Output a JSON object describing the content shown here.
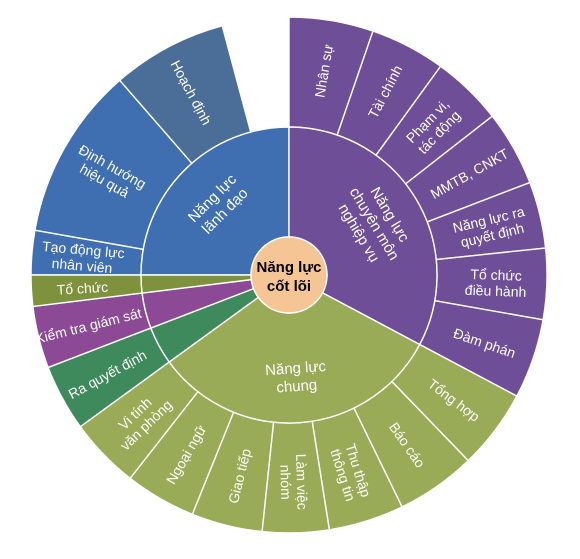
{
  "diagram": {
    "center": {
      "lines": [
        "Năng lực",
        "cốt lõi"
      ],
      "color": "#f6c596"
    },
    "groups": [
      {
        "id": "lanh-dao",
        "lines": [
          "Năng lực",
          "lãnh đạo"
        ],
        "inner_color": "#3f6fb0",
        "outer_color": "#3f6fb0",
        "items": [
          {
            "lines": [
              "Tạo động lực",
              "nhân viên"
            ],
            "color": "#3f6fb0"
          },
          {
            "lines": [
              "Định hướng",
              "hiệu quả"
            ],
            "color": "#3f6fb0"
          },
          {
            "lines": [
              "Hoạch định"
            ],
            "color": "#4a6e97"
          }
        ]
      },
      {
        "id": "chuyen-mon",
        "lines": [
          "Năng lực",
          "chuyên môn",
          "nghiệp vụ"
        ],
        "inner_color": "#6f4e98",
        "outer_color": "#6f4e98",
        "items": [
          {
            "lines": [
              "Nhân sự"
            ],
            "color": "#6f4e98"
          },
          {
            "lines": [
              "Tài chính"
            ],
            "color": "#6f4e98"
          },
          {
            "lines": [
              "Phạm vi,",
              "tác động"
            ],
            "color": "#6f4e98"
          },
          {
            "lines": [
              "MMTB, CNKT"
            ],
            "color": "#6f4e98"
          },
          {
            "lines": [
              "Năng lực ra",
              "quyết định"
            ],
            "color": "#6f4e98"
          },
          {
            "lines": [
              "Tổ chức",
              "điều hành"
            ],
            "color": "#6f4e98"
          },
          {
            "lines": [
              "Đàm phán"
            ],
            "color": "#6f4e98"
          }
        ]
      },
      {
        "id": "chung",
        "lines": [
          "Năng lực",
          "chung"
        ],
        "inner_color": "#9aab58",
        "outer_color": "#9aab58",
        "items": [
          {
            "lines": [
              "Tổng hợp"
            ],
            "color": "#9aab58"
          },
          {
            "lines": [
              "Báo cáo"
            ],
            "color": "#9aab58"
          },
          {
            "lines": [
              "Thu thập",
              "thông tin"
            ],
            "color": "#9aab58"
          },
          {
            "lines": [
              "Làm việc",
              "nhóm"
            ],
            "color": "#9aab58"
          },
          {
            "lines": [
              "Giao tiếp"
            ],
            "color": "#9aab58"
          },
          {
            "lines": [
              "Ngoại ngữ"
            ],
            "color": "#9aab58"
          },
          {
            "lines": [
              "Vi tính",
              "văn phòng"
            ],
            "color": "#9aab58"
          }
        ]
      },
      {
        "id": "other-1",
        "lines": [],
        "inner_color": "#3f8a5c",
        "outer_color": "#3f8a5c",
        "items": [
          {
            "lines": [
              "Ra quyết định"
            ],
            "color": "#3f8a5c"
          }
        ]
      },
      {
        "id": "other-2",
        "lines": [],
        "inner_color": "#8c4a96",
        "outer_color": "#8c4a96",
        "items": [
          {
            "lines": [
              "Kiểm tra giám sát"
            ],
            "color": "#8c4a96"
          }
        ]
      },
      {
        "id": "other-3",
        "lines": [],
        "inner_color": "#7e913c",
        "outer_color": "#7e913c",
        "items": [
          {
            "lines": [
              "Tổ chức"
            ],
            "color": "#7e913c"
          }
        ]
      }
    ]
  }
}
